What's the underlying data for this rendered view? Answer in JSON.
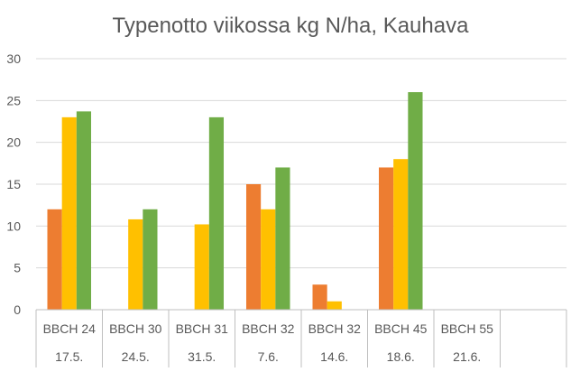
{
  "chart_data": {
    "type": "bar",
    "title": "Typenotto viikossa kg N/ha, Kauhava",
    "xlabel": "",
    "ylabel": "",
    "ylim": [
      0,
      30
    ],
    "yticks": [
      0,
      5,
      10,
      15,
      20,
      25,
      30
    ],
    "grid": true,
    "legend": "none",
    "categories": [
      "BBCH 24",
      "BBCH 30",
      "BBCH 31",
      "BBCH 32",
      "BBCH 32",
      "BBCH 45",
      "BBCH 55",
      ""
    ],
    "dates": [
      "17.5.",
      "24.5.",
      "31.5.",
      "7.6.",
      "14.6.",
      "18.6.",
      "21.6.",
      ""
    ],
    "series": [
      {
        "color": "#ED7D31",
        "values": [
          12,
          null,
          null,
          15,
          3,
          17,
          null,
          null
        ]
      },
      {
        "color": "#FFC000",
        "values": [
          23,
          10.8,
          10.2,
          12,
          1,
          18,
          null,
          null
        ]
      },
      {
        "color": "#70AD47",
        "values": [
          23.7,
          12,
          23,
          17,
          null,
          26,
          null,
          null
        ]
      }
    ]
  },
  "colors": {
    "grid": "#D9D9D9",
    "axis": "#BFBFBF",
    "text": "#595959"
  }
}
